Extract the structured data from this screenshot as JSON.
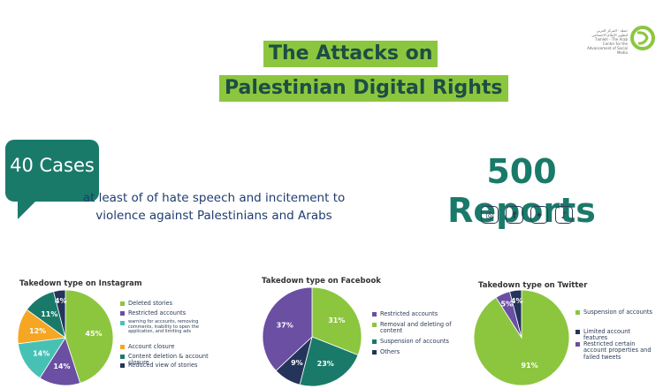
{
  "title": {
    "line1": "The Attacks on",
    "line2": "Palestinian Digital Rights"
  },
  "logo": {
    "caption": "حملة - المركز العربي لتطوير الإعلام الاجتماعي 7amleh - The Arab Center for the Advancement of Social Media",
    "icon": "7amleh-logo"
  },
  "cases": {
    "label": "40 Cases",
    "text_line1": "at least of of hate speech and incitement to",
    "text_line2": "violence against Palestinians and Arabs"
  },
  "reports": {
    "label": "500 Reports"
  },
  "social_icons": [
    {
      "name": "instagram-icon",
      "glyph": "◎"
    },
    {
      "name": "facebook-icon",
      "glyph": "f"
    },
    {
      "name": "twitter-icon",
      "glyph": "✦"
    },
    {
      "name": "tiktok-icon",
      "glyph": "♪"
    }
  ],
  "colors": {
    "green": "#8cc63f",
    "teal": "#1a7a6a",
    "navy": "#1f3c6e",
    "purple": "#6a4fa3",
    "orange": "#f6a623",
    "cyan": "#48c1b5",
    "dark": "#24345a",
    "violet": "#5c4a9c"
  },
  "chart_data": [
    {
      "type": "pie",
      "title": "Takedown type on Instagram",
      "series": [
        {
          "values": [
            45,
            14,
            14,
            12,
            11,
            4
          ]
        }
      ],
      "categories": [
        "Deleted stories",
        "Restricted accounts",
        "warning for accounts, removing comments, inability to open the application, and limiting ads",
        "Account closure",
        "Content deletion & account closure",
        "Reduced view of stories"
      ],
      "labels": [
        "45%",
        "14%",
        "14%",
        "12%",
        "11%",
        "4%"
      ],
      "colors": [
        "#8cc63f",
        "#6a4fa3",
        "#48c1b5",
        "#f6a623",
        "#1a7a6a",
        "#24345a"
      ]
    },
    {
      "type": "pie",
      "title": "Takedown type on Facebook",
      "series": [
        {
          "values": [
            31,
            23,
            9,
            37
          ]
        }
      ],
      "categories": [
        "Removal and deleting of content",
        "Suspension of accounts",
        "Others",
        "Restricted accounts"
      ],
      "labels": [
        "31%",
        "23%",
        "9%",
        "37%"
      ],
      "colors": [
        "#8cc63f",
        "#1a7a6a",
        "#24345a",
        "#6a4fa3"
      ],
      "legend_order": [
        3,
        0,
        1,
        2
      ]
    },
    {
      "type": "pie",
      "title": "Takedown type on Twitter",
      "series": [
        {
          "values": [
            91,
            5,
            4
          ]
        }
      ],
      "categories": [
        "Suspension of accounts",
        "Restricted certain account properties and failed tweets",
        "Limited account features"
      ],
      "labels": [
        "91%",
        "5%",
        "4%"
      ],
      "colors": [
        "#8cc63f",
        "#6a4fa3",
        "#24345a"
      ],
      "legend_order": [
        0,
        2,
        1
      ]
    }
  ]
}
